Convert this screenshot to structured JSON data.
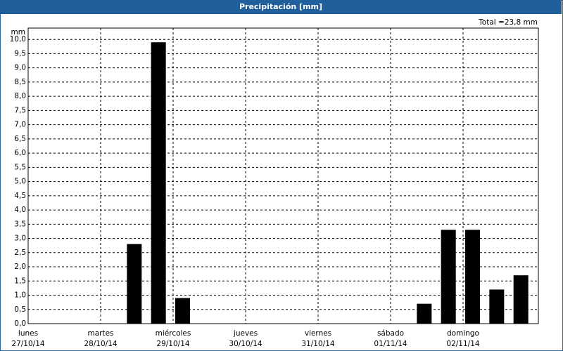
{
  "chart_data": {
    "type": "bar",
    "title": "Precipitación [mm]",
    "total_label": "Total =23,8 mm",
    "ylabel": "mm",
    "days": [
      {
        "name": "lunes",
        "date": "27/10/14"
      },
      {
        "name": "martes",
        "date": "28/10/14"
      },
      {
        "name": "miércoles",
        "date": "29/10/14"
      },
      {
        "name": "jueves",
        "date": "30/10/14"
      },
      {
        "name": "viernes",
        "date": "31/10/14"
      },
      {
        "name": "sábado",
        "date": "01/11/14"
      },
      {
        "name": "domingo",
        "date": "02/11/14"
      }
    ],
    "values": [
      0,
      0,
      0,
      0,
      2.8,
      9.9,
      0.9,
      0,
      0,
      0,
      0,
      0,
      0,
      0,
      0,
      0,
      0.7,
      3.3,
      3.3,
      1.2,
      1.7
    ],
    "color": "#000000",
    "ylim": [
      0,
      10.4
    ],
    "yticks": [
      {
        "value": 0,
        "label": "0,0"
      },
      {
        "value": 0.5,
        "label": "0,5"
      },
      {
        "value": 1,
        "label": "1,0"
      },
      {
        "value": 1.5,
        "label": "1,5"
      },
      {
        "value": 2,
        "label": "2,0"
      },
      {
        "value": 2.5,
        "label": "2,5"
      },
      {
        "value": 3,
        "label": "3,0"
      },
      {
        "value": 3.5,
        "label": "3,5"
      },
      {
        "value": 4,
        "label": "4,0"
      },
      {
        "value": 4.5,
        "label": "4,5"
      },
      {
        "value": 5,
        "label": "5,0"
      },
      {
        "value": 5.5,
        "label": "5,5"
      },
      {
        "value": 6,
        "label": "6,0"
      },
      {
        "value": 6.5,
        "label": "6,5"
      },
      {
        "value": 7,
        "label": "7,0"
      },
      {
        "value": 7.5,
        "label": "7,5"
      },
      {
        "value": 8,
        "label": "8,0"
      },
      {
        "value": 8.5,
        "label": "8,5"
      },
      {
        "value": 9,
        "label": "9,0"
      },
      {
        "value": 9.5,
        "label": "9,5"
      },
      {
        "value": 10,
        "label": "10,0"
      }
    ],
    "grid": true
  }
}
